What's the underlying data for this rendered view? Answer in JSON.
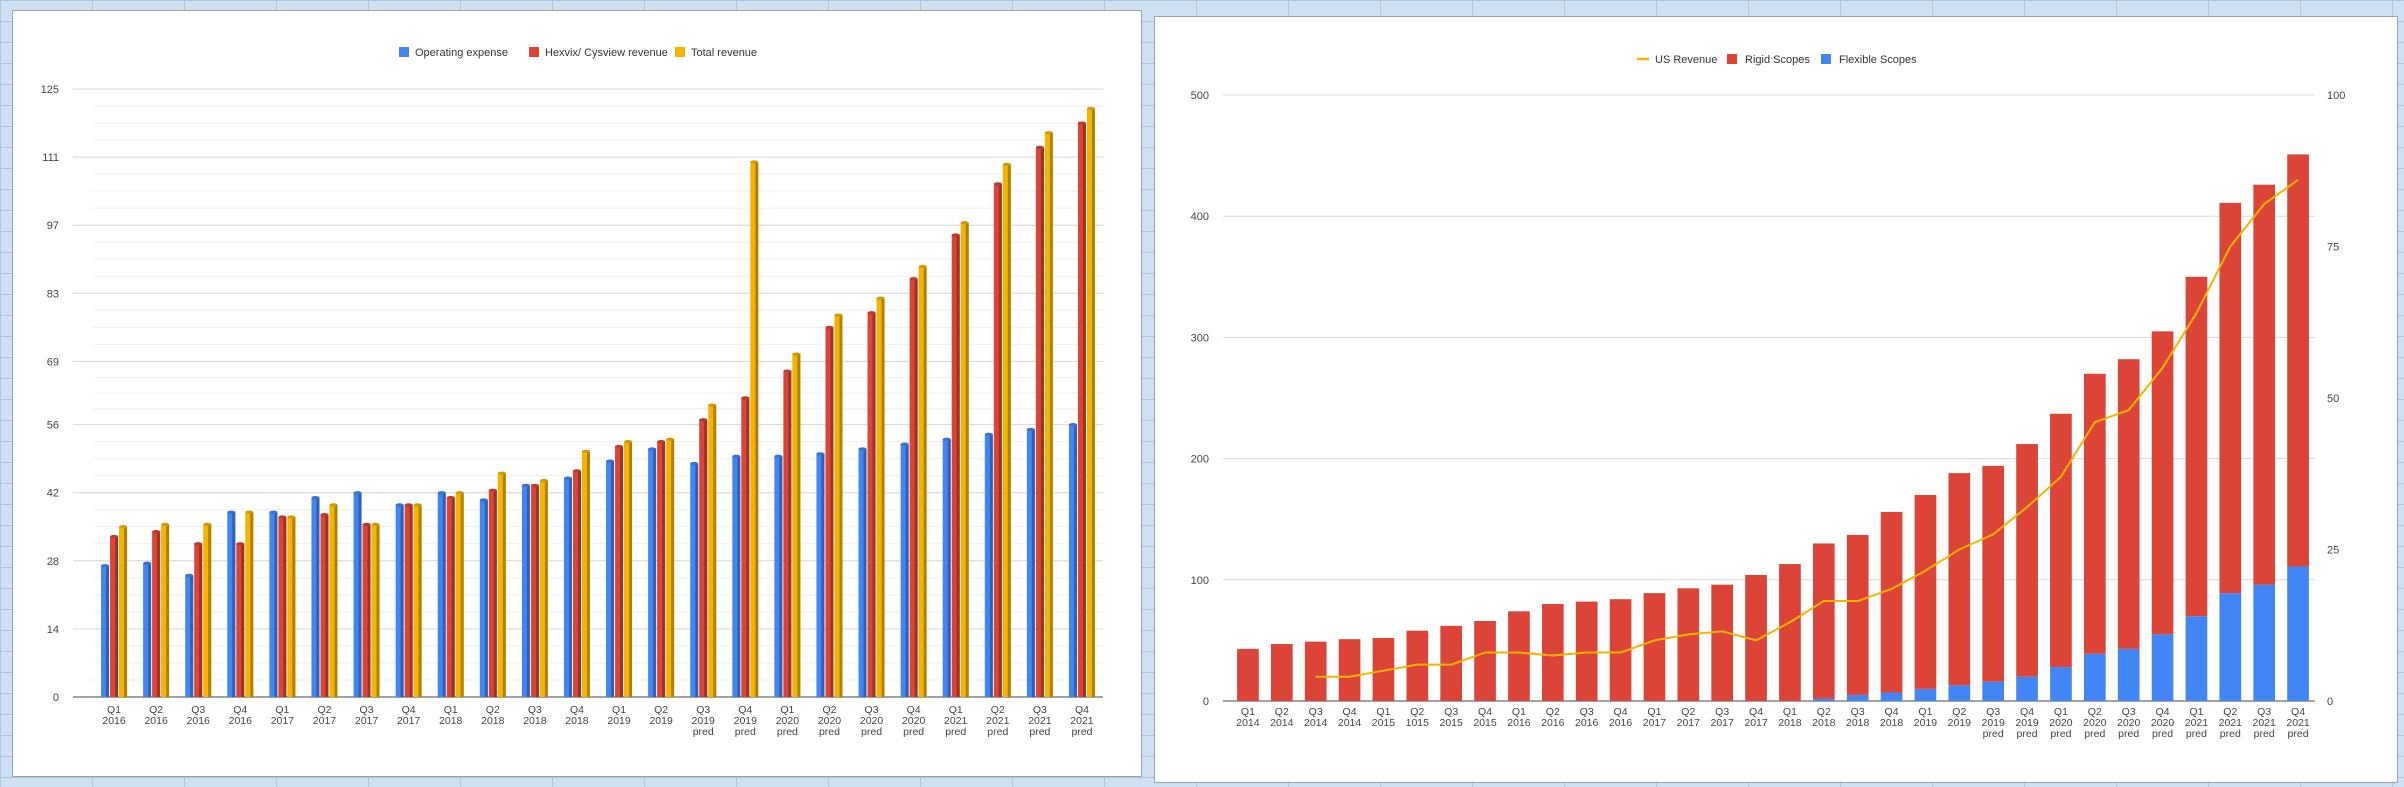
{
  "colors": {
    "operating_expense": "#4285f4",
    "hexvix_revenue": "#db4437",
    "total_revenue": "#f4b400",
    "us_revenue": "#f4b400",
    "rigid_scopes": "#db4437",
    "flexible_scopes": "#4285f4",
    "grid": "#e3e3e3",
    "axis_text": "#444444"
  },
  "chart_data": [
    {
      "type": "bar",
      "legend_position": "top",
      "grid": true,
      "ylim": [
        0,
        125
      ],
      "yticks": [
        "0",
        "14",
        "28",
        "42",
        "56",
        "69",
        "83",
        "97",
        "111",
        "125"
      ],
      "categories": [
        [
          "Q1",
          "2016"
        ],
        [
          "Q2",
          "2016"
        ],
        [
          "Q3",
          "2016"
        ],
        [
          "Q4",
          "2016"
        ],
        [
          "Q1",
          "2017"
        ],
        [
          "Q2",
          "2017"
        ],
        [
          "Q3",
          "2017"
        ],
        [
          "Q4",
          "2017"
        ],
        [
          "Q1",
          "2018"
        ],
        [
          "Q2",
          "2018"
        ],
        [
          "Q3",
          "2018"
        ],
        [
          "Q4",
          "2018"
        ],
        [
          "Q1",
          "2019"
        ],
        [
          "Q2",
          "2019"
        ],
        [
          "Q3",
          "2019",
          "pred"
        ],
        [
          "Q4",
          "2019",
          "pred"
        ],
        [
          "Q1",
          "2020",
          "pred"
        ],
        [
          "Q2",
          "2020",
          "pred"
        ],
        [
          "Q3",
          "2020",
          "pred"
        ],
        [
          "Q4",
          "2020",
          "pred"
        ],
        [
          "Q1",
          "2021",
          "pred"
        ],
        [
          "Q2",
          "2021",
          "pred"
        ],
        [
          "Q3",
          "2021",
          "pred"
        ],
        [
          "Q4",
          "2021",
          "pred"
        ]
      ],
      "series": [
        {
          "name": "Operating expense",
          "color_key": "operating_expense",
          "values": [
            27,
            27.5,
            25,
            38,
            38,
            41,
            42,
            39.5,
            42,
            40.5,
            43.5,
            45,
            48.5,
            51,
            48,
            49.5,
            49.5,
            50,
            51,
            52,
            53,
            54,
            55,
            56
          ]
        },
        {
          "name": "Hexvix/ Cysview revenue",
          "color_key": "hexvix_revenue",
          "values": [
            33,
            34,
            31.5,
            31.5,
            37,
            37.5,
            35.5,
            39.5,
            41,
            42.5,
            43.5,
            46.5,
            51.5,
            52.5,
            57,
            61.5,
            67,
            76,
            79,
            86,
            95,
            105.5,
            113,
            118
          ]
        },
        {
          "name": "Total revenue",
          "color_key": "total_revenue",
          "values": [
            35,
            35.5,
            35.5,
            38,
            37,
            39.5,
            35.5,
            39.5,
            42,
            46,
            44.5,
            50.5,
            52.5,
            53,
            60,
            110,
            70.5,
            78.5,
            82,
            88.5,
            97.5,
            109.5,
            116,
            121
          ]
        }
      ]
    },
    {
      "type": "bar",
      "stacked": true,
      "legend_position": "top",
      "grid": true,
      "ylim": [
        0,
        500
      ],
      "yticks": [
        "0",
        "100",
        "200",
        "300",
        "400",
        "500"
      ],
      "y2lim": [
        0,
        100
      ],
      "y2ticks": [
        "0",
        "25",
        "50",
        "75",
        "100"
      ],
      "categories": [
        [
          "Q1",
          "2014"
        ],
        [
          "Q2",
          "2014"
        ],
        [
          "Q3",
          "2014"
        ],
        [
          "Q4",
          "2014"
        ],
        [
          "Q1",
          "2015"
        ],
        [
          "Q2",
          "1015"
        ],
        [
          "Q3",
          "2015"
        ],
        [
          "Q4",
          "2015"
        ],
        [
          "Q1",
          "2016"
        ],
        [
          "Q2",
          "2016"
        ],
        [
          "Q3",
          "2016"
        ],
        [
          "Q4",
          "2016"
        ],
        [
          "Q1",
          "2017"
        ],
        [
          "Q2",
          "2017"
        ],
        [
          "Q3",
          "2017"
        ],
        [
          "Q4",
          "2017"
        ],
        [
          "Q1",
          "2018"
        ],
        [
          "Q2",
          "2018"
        ],
        [
          "Q3",
          "2018"
        ],
        [
          "Q4",
          "2018"
        ],
        [
          "Q1",
          "2019"
        ],
        [
          "Q2",
          "2019"
        ],
        [
          "Q3",
          "2019",
          "pred"
        ],
        [
          "Q4",
          "2019",
          "pred"
        ],
        [
          "Q1",
          "2020",
          "pred"
        ],
        [
          "Q2",
          "2020",
          "pred"
        ],
        [
          "Q3",
          "2020",
          "pred"
        ],
        [
          "Q4",
          "2020",
          "pred"
        ],
        [
          "Q1",
          "2021",
          "pred"
        ],
        [
          "Q2",
          "2021",
          "pred"
        ],
        [
          "Q3",
          "2021",
          "pred"
        ],
        [
          "Q4",
          "2021",
          "pred"
        ]
      ],
      "series": [
        {
          "name": "US Revenue",
          "kind": "line",
          "axis": "right",
          "color_key": "us_revenue",
          "values": [
            null,
            null,
            4,
            4,
            5,
            6,
            6,
            8,
            8,
            7.5,
            8,
            8,
            10,
            11,
            11.5,
            10,
            13,
            16.5,
            16.5,
            18.5,
            21.5,
            25,
            27.5,
            32,
            37,
            46,
            48,
            55,
            64,
            75,
            82,
            86
          ]
        },
        {
          "name": "Rigid Scopes",
          "kind": "bar",
          "axis": "left",
          "color_key": "rigid_scopes",
          "values": [
            43,
            47,
            49,
            51,
            52,
            58,
            62,
            66,
            74,
            80,
            82,
            84,
            89,
            93,
            96,
            104,
            113,
            128,
            132,
            149,
            160,
            175,
            178,
            192,
            209,
            231,
            239,
            250,
            280,
            322,
            330,
            340
          ]
        },
        {
          "name": "Flexible Scopes",
          "kind": "bar",
          "axis": "left",
          "color_key": "flexible_scopes",
          "values": [
            0,
            0,
            0,
            0,
            0,
            0,
            0,
            0,
            0,
            0,
            0,
            0,
            0,
            0,
            0,
            0,
            0,
            2,
            5,
            7,
            10,
            13,
            16,
            20,
            28,
            39,
            43,
            55,
            70,
            89,
            96,
            111
          ]
        }
      ]
    }
  ]
}
